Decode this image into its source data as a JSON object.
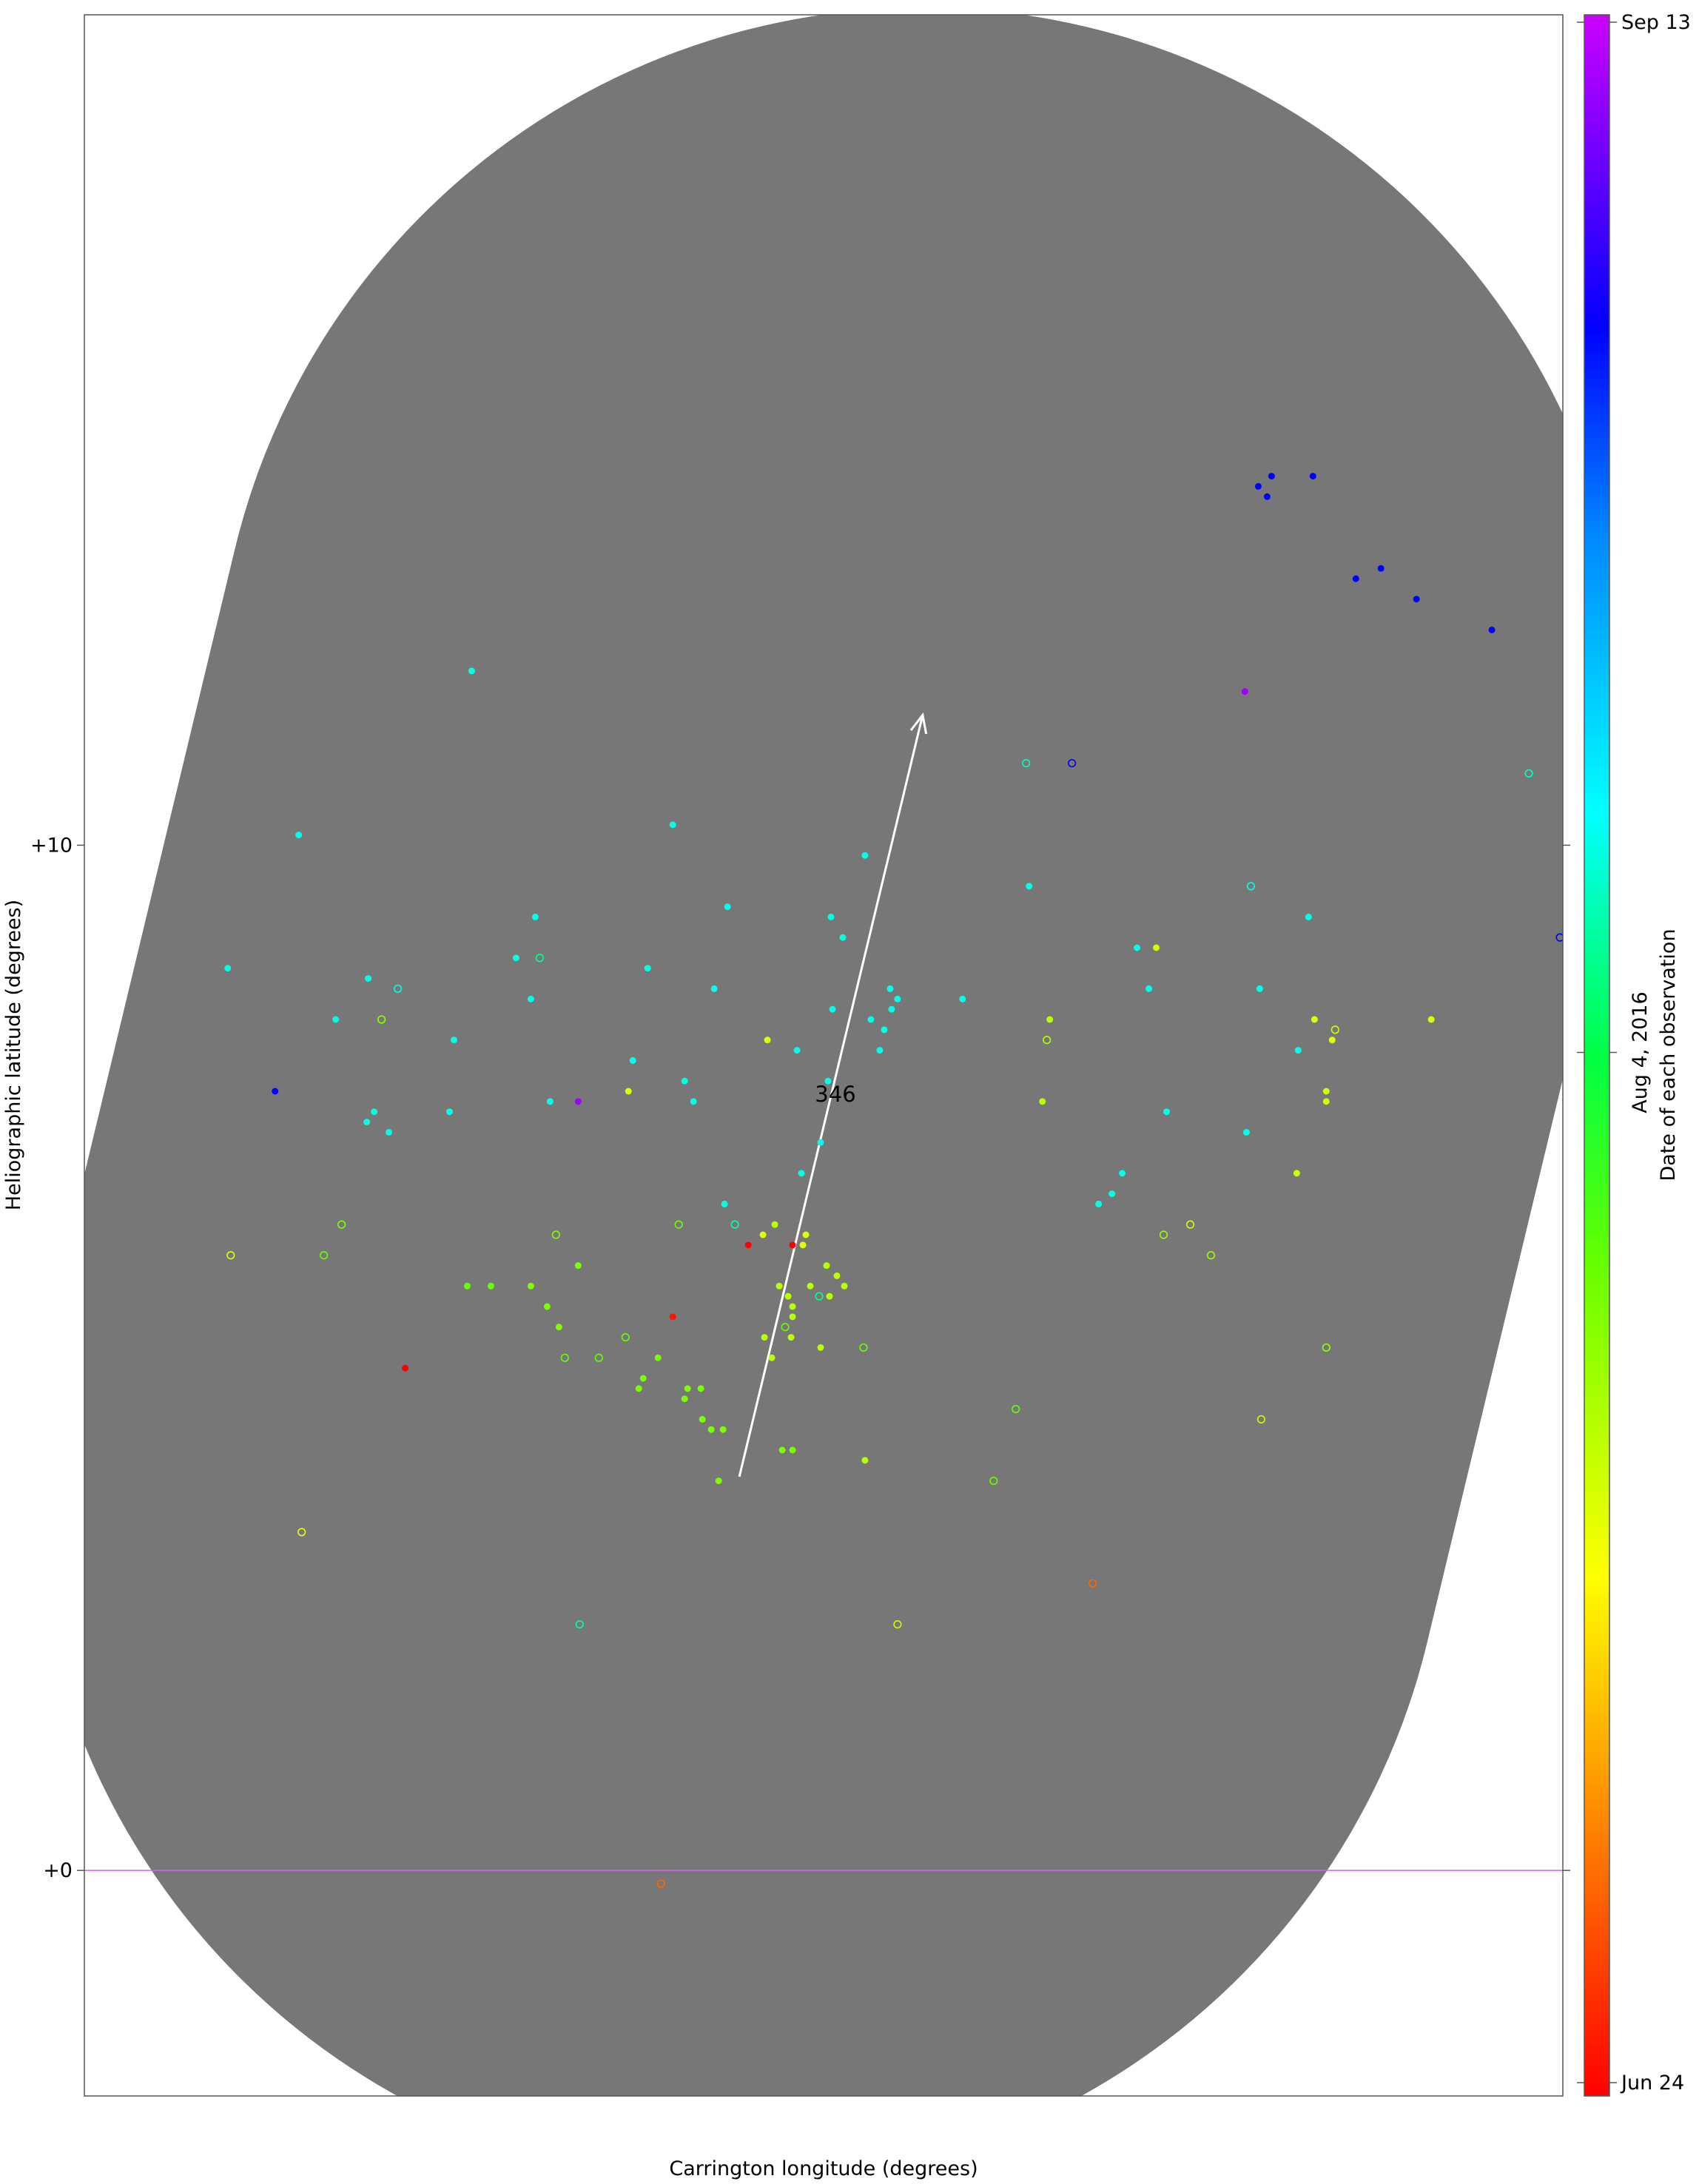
{
  "chart_data": {
    "type": "scatter",
    "xlabel": "Carrington longitude (degrees)",
    "ylabel": "Heliographic latitude (degrees)",
    "y_ticks": [
      {
        "value": 0,
        "label": "+0"
      },
      {
        "value": 10,
        "label": "+10"
      }
    ],
    "xlim": [
      0,
      100
    ],
    "ylim": [
      -2.2,
      18.1
    ],
    "grid": false,
    "colorbar": {
      "title": "Date of each observation",
      "ticks": [
        {
          "t": 0.0,
          "label": "Jun 24"
        },
        {
          "t": 0.5,
          "label": "Aug 4, 2016"
        },
        {
          "t": 1.0,
          "label": "Sep 13"
        }
      ]
    },
    "regions": [
      {
        "label": "346",
        "start": [
          44.3,
          3.84
        ],
        "end": [
          56.7,
          11.27
        ],
        "halfwidth_lat": 6.9,
        "color": "#777777"
      }
    ],
    "equator_line": {
      "value": 0,
      "color": "#cc66ee"
    },
    "points": [
      {
        "x": 9.7,
        "y": 8.8,
        "t": 0.6,
        "filled": true
      },
      {
        "x": 14.5,
        "y": 10.1,
        "t": 0.6,
        "filled": true
      },
      {
        "x": 26.2,
        "y": 11.7,
        "t": 0.6,
        "filled": true
      },
      {
        "x": 17.0,
        "y": 8.3,
        "t": 0.6,
        "filled": true
      },
      {
        "x": 19.2,
        "y": 8.7,
        "t": 0.6,
        "filled": true
      },
      {
        "x": 21.2,
        "y": 8.6,
        "t": 0.6,
        "open": true,
        "filled": false
      },
      {
        "x": 25.0,
        "y": 8.1,
        "t": 0.6,
        "filled": true
      },
      {
        "x": 30.2,
        "y": 8.5,
        "t": 0.6,
        "filled": true
      },
      {
        "x": 29.2,
        "y": 8.9,
        "t": 0.6,
        "filled": true
      },
      {
        "x": 30.5,
        "y": 9.3,
        "t": 0.6,
        "filled": true
      },
      {
        "x": 19.6,
        "y": 7.4,
        "t": 0.6,
        "filled": true
      },
      {
        "x": 20.6,
        "y": 7.2,
        "t": 0.6,
        "filled": true
      },
      {
        "x": 19.1,
        "y": 7.3,
        "t": 0.6,
        "filled": true
      },
      {
        "x": 24.7,
        "y": 7.4,
        "t": 0.6,
        "filled": true
      },
      {
        "x": 30.8,
        "y": 8.9,
        "t": 0.55,
        "open": true,
        "filled": false
      },
      {
        "x": 31.5,
        "y": 7.5,
        "t": 0.6,
        "filled": true
      },
      {
        "x": 39.8,
        "y": 10.2,
        "t": 0.6,
        "filled": true
      },
      {
        "x": 43.5,
        "y": 9.4,
        "t": 0.6,
        "filled": true
      },
      {
        "x": 38.1,
        "y": 8.8,
        "t": 0.6,
        "filled": true
      },
      {
        "x": 42.6,
        "y": 8.6,
        "t": 0.6,
        "filled": true
      },
      {
        "x": 37.1,
        "y": 7.9,
        "t": 0.6,
        "filled": true
      },
      {
        "x": 40.6,
        "y": 7.7,
        "t": 0.6,
        "filled": true
      },
      {
        "x": 41.2,
        "y": 7.5,
        "t": 0.6,
        "filled": true
      },
      {
        "x": 44.0,
        "y": 6.3,
        "t": 0.57,
        "open": true,
        "filled": false
      },
      {
        "x": 43.3,
        "y": 6.5,
        "t": 0.6,
        "filled": true
      },
      {
        "x": 48.2,
        "y": 8.0,
        "t": 0.6,
        "filled": true
      },
      {
        "x": 50.3,
        "y": 7.7,
        "t": 0.6,
        "filled": true
      },
      {
        "x": 49.8,
        "y": 7.1,
        "t": 0.6,
        "filled": true
      },
      {
        "x": 48.5,
        "y": 6.8,
        "t": 0.6,
        "filled": true
      },
      {
        "x": 50.5,
        "y": 9.3,
        "t": 0.6,
        "filled": true
      },
      {
        "x": 51.3,
        "y": 9.1,
        "t": 0.6,
        "filled": true
      },
      {
        "x": 50.6,
        "y": 8.4,
        "t": 0.6,
        "filled": true
      },
      {
        "x": 52.8,
        "y": 9.9,
        "t": 0.6,
        "filled": true
      },
      {
        "x": 53.2,
        "y": 8.3,
        "t": 0.6,
        "filled": true
      },
      {
        "x": 54.6,
        "y": 8.4,
        "t": 0.6,
        "filled": true
      },
      {
        "x": 54.5,
        "y": 8.6,
        "t": 0.6,
        "filled": true
      },
      {
        "x": 55.0,
        "y": 8.5,
        "t": 0.6,
        "filled": true
      },
      {
        "x": 54.1,
        "y": 8.2,
        "t": 0.6,
        "filled": true
      },
      {
        "x": 53.8,
        "y": 8.0,
        "t": 0.6,
        "filled": true
      },
      {
        "x": 59.4,
        "y": 8.5,
        "t": 0.6,
        "filled": true
      },
      {
        "x": 63.7,
        "y": 10.8,
        "t": 0.57,
        "open": true,
        "filled": false
      },
      {
        "x": 63.9,
        "y": 9.6,
        "t": 0.6,
        "filled": true
      },
      {
        "x": 71.2,
        "y": 9.0,
        "t": 0.6,
        "filled": true
      },
      {
        "x": 72.0,
        "y": 8.6,
        "t": 0.6,
        "filled": true
      },
      {
        "x": 73.2,
        "y": 7.4,
        "t": 0.6,
        "filled": true
      },
      {
        "x": 69.5,
        "y": 6.6,
        "t": 0.6,
        "filled": true
      },
      {
        "x": 68.6,
        "y": 6.5,
        "t": 0.6,
        "filled": true
      },
      {
        "x": 70.2,
        "y": 6.8,
        "t": 0.6,
        "filled": true
      },
      {
        "x": 78.9,
        "y": 9.6,
        "t": 0.6,
        "open": true,
        "filled": false
      },
      {
        "x": 82.8,
        "y": 9.3,
        "t": 0.6,
        "filled": true
      },
      {
        "x": 79.5,
        "y": 8.6,
        "t": 0.6,
        "filled": true
      },
      {
        "x": 82.1,
        "y": 8.0,
        "t": 0.6,
        "filled": true
      },
      {
        "x": 78.6,
        "y": 7.2,
        "t": 0.6,
        "filled": true
      },
      {
        "x": 97.7,
        "y": 10.7,
        "t": 0.58,
        "open": true,
        "filled": false
      },
      {
        "x": 66.8,
        "y": 10.8,
        "t": 0.85,
        "open": true,
        "filled": false
      },
      {
        "x": 99.8,
        "y": 9.1,
        "t": 0.85,
        "open": true,
        "filled": false
      },
      {
        "x": 12.9,
        "y": 7.6,
        "t": 0.85,
        "filled": true
      },
      {
        "x": 33.4,
        "y": 7.5,
        "t": 0.95,
        "filled": true
      },
      {
        "x": 78.5,
        "y": 11.5,
        "t": 0.95,
        "filled": true
      },
      {
        "x": 79.4,
        "y": 13.5,
        "t": 0.85,
        "filled": true
      },
      {
        "x": 80.3,
        "y": 13.6,
        "t": 0.85,
        "filled": true
      },
      {
        "x": 80.0,
        "y": 13.4,
        "t": 0.85,
        "filled": true
      },
      {
        "x": 83.1,
        "y": 13.6,
        "t": 0.85,
        "filled": true
      },
      {
        "x": 86.0,
        "y": 12.6,
        "t": 0.85,
        "filled": true
      },
      {
        "x": 87.7,
        "y": 12.7,
        "t": 0.85,
        "filled": true
      },
      {
        "x": 90.1,
        "y": 12.4,
        "t": 0.85,
        "filled": true
      },
      {
        "x": 95.2,
        "y": 12.1,
        "t": 0.85,
        "filled": true
      },
      {
        "x": 9.9,
        "y": 6.0,
        "t": 0.28,
        "open": true,
        "filled": false
      },
      {
        "x": 14.7,
        "y": 3.3,
        "t": 0.27,
        "open": true,
        "filled": false
      },
      {
        "x": 17.4,
        "y": 6.3,
        "t": 0.38,
        "open": true,
        "filled": false
      },
      {
        "x": 20.1,
        "y": 8.3,
        "t": 0.36,
        "open": true,
        "filled": false
      },
      {
        "x": 16.2,
        "y": 6.0,
        "t": 0.4,
        "open": true,
        "filled": false
      },
      {
        "x": 21.7,
        "y": 4.9,
        "t": 0.0,
        "filled": true
      },
      {
        "x": 25.9,
        "y": 5.7,
        "t": 0.4,
        "filled": true
      },
      {
        "x": 27.5,
        "y": 5.7,
        "t": 0.4,
        "filled": true
      },
      {
        "x": 30.2,
        "y": 5.7,
        "t": 0.38,
        "filled": true
      },
      {
        "x": 31.3,
        "y": 5.5,
        "t": 0.38,
        "filled": true
      },
      {
        "x": 32.1,
        "y": 5.3,
        "t": 0.38,
        "filled": true
      },
      {
        "x": 32.5,
        "y": 5.0,
        "t": 0.4,
        "open": true,
        "filled": false
      },
      {
        "x": 33.4,
        "y": 5.9,
        "t": 0.38,
        "filled": true
      },
      {
        "x": 34.8,
        "y": 5.0,
        "t": 0.4,
        "open": true,
        "filled": false
      },
      {
        "x": 31.9,
        "y": 6.2,
        "t": 0.38,
        "open": true,
        "filled": false
      },
      {
        "x": 36.8,
        "y": 7.6,
        "t": 0.28,
        "filled": true
      },
      {
        "x": 36.6,
        "y": 5.2,
        "t": 0.4,
        "open": true,
        "filled": false
      },
      {
        "x": 37.5,
        "y": 4.7,
        "t": 0.38,
        "filled": true
      },
      {
        "x": 37.8,
        "y": 4.8,
        "t": 0.38,
        "filled": true
      },
      {
        "x": 38.8,
        "y": 5.0,
        "t": 0.38,
        "filled": true
      },
      {
        "x": 40.6,
        "y": 4.6,
        "t": 0.38,
        "filled": true
      },
      {
        "x": 40.8,
        "y": 4.7,
        "t": 0.38,
        "filled": true
      },
      {
        "x": 41.8,
        "y": 4.4,
        "t": 0.38,
        "filled": true
      },
      {
        "x": 41.7,
        "y": 4.7,
        "t": 0.38,
        "filled": true
      },
      {
        "x": 42.4,
        "y": 4.3,
        "t": 0.38,
        "filled": true
      },
      {
        "x": 43.2,
        "y": 4.3,
        "t": 0.38,
        "filled": true
      },
      {
        "x": 42.9,
        "y": 3.8,
        "t": 0.38,
        "filled": true
      },
      {
        "x": 40.2,
        "y": 6.3,
        "t": 0.4,
        "open": true,
        "filled": false
      },
      {
        "x": 39.8,
        "y": 5.4,
        "t": 0.02,
        "filled": true
      },
      {
        "x": 44.9,
        "y": 6.1,
        "t": 0.0,
        "filled": true
      },
      {
        "x": 45.9,
        "y": 6.2,
        "t": 0.28,
        "filled": true
      },
      {
        "x": 47.9,
        "y": 6.1,
        "t": 0.0,
        "filled": true
      },
      {
        "x": 48.6,
        "y": 6.1,
        "t": 0.28,
        "filled": true
      },
      {
        "x": 48.8,
        "y": 6.2,
        "t": 0.28,
        "filled": true
      },
      {
        "x": 46.2,
        "y": 8.1,
        "t": 0.28,
        "filled": true
      },
      {
        "x": 46.7,
        "y": 6.3,
        "t": 0.32,
        "filled": true
      },
      {
        "x": 47.0,
        "y": 5.7,
        "t": 0.32,
        "filled": true
      },
      {
        "x": 47.6,
        "y": 5.6,
        "t": 0.32,
        "filled": true
      },
      {
        "x": 47.9,
        "y": 5.5,
        "t": 0.32,
        "filled": true
      },
      {
        "x": 47.9,
        "y": 5.4,
        "t": 0.32,
        "filled": true
      },
      {
        "x": 47.4,
        "y": 5.3,
        "t": 0.4,
        "open": true,
        "filled": false
      },
      {
        "x": 49.1,
        "y": 5.7,
        "t": 0.32,
        "filled": true
      },
      {
        "x": 49.7,
        "y": 5.6,
        "t": 0.55,
        "open": true,
        "filled": false
      },
      {
        "x": 50.2,
        "y": 5.9,
        "t": 0.32,
        "filled": true
      },
      {
        "x": 50.4,
        "y": 5.6,
        "t": 0.32,
        "filled": true
      },
      {
        "x": 50.9,
        "y": 5.8,
        "t": 0.32,
        "filled": true
      },
      {
        "x": 51.4,
        "y": 5.7,
        "t": 0.32,
        "filled": true
      },
      {
        "x": 46.0,
        "y": 5.2,
        "t": 0.32,
        "filled": true
      },
      {
        "x": 46.5,
        "y": 5.0,
        "t": 0.32,
        "filled": true
      },
      {
        "x": 49.8,
        "y": 5.1,
        "t": 0.32,
        "filled": true
      },
      {
        "x": 47.8,
        "y": 5.2,
        "t": 0.32,
        "filled": true
      },
      {
        "x": 52.7,
        "y": 5.1,
        "t": 0.4,
        "open": true,
        "filled": false
      },
      {
        "x": 47.2,
        "y": 4.1,
        "t": 0.38,
        "filled": true
      },
      {
        "x": 47.9,
        "y": 4.1,
        "t": 0.38,
        "filled": true
      },
      {
        "x": 52.8,
        "y": 4.0,
        "t": 0.32,
        "filled": true
      },
      {
        "x": 64.8,
        "y": 7.5,
        "t": 0.32,
        "filled": true
      },
      {
        "x": 65.3,
        "y": 8.3,
        "t": 0.32,
        "filled": true
      },
      {
        "x": 65.1,
        "y": 8.1,
        "t": 0.32,
        "open": true,
        "filled": false
      },
      {
        "x": 61.5,
        "y": 3.8,
        "t": 0.4,
        "open": true,
        "filled": false
      },
      {
        "x": 63.0,
        "y": 4.5,
        "t": 0.4,
        "open": true,
        "filled": false
      },
      {
        "x": 68.2,
        "y": 2.8,
        "t": 0.1,
        "open": true,
        "filled": false
      },
      {
        "x": 55.0,
        "y": 2.4,
        "t": 0.3,
        "open": true,
        "filled": false
      },
      {
        "x": 33.5,
        "y": 2.4,
        "t": 0.55,
        "open": true,
        "filled": false
      },
      {
        "x": 72.5,
        "y": 9.0,
        "t": 0.3,
        "filled": true
      },
      {
        "x": 73.0,
        "y": 6.2,
        "t": 0.35,
        "open": true,
        "filled": false
      },
      {
        "x": 74.8,
        "y": 6.3,
        "t": 0.3,
        "open": true,
        "filled": false
      },
      {
        "x": 76.2,
        "y": 6.0,
        "t": 0.35,
        "open": true,
        "filled": false
      },
      {
        "x": 79.6,
        "y": 4.4,
        "t": 0.3,
        "open": true,
        "filled": false
      },
      {
        "x": 82.0,
        "y": 6.8,
        "t": 0.3,
        "filled": true
      },
      {
        "x": 83.2,
        "y": 8.3,
        "t": 0.28,
        "filled": true
      },
      {
        "x": 84.4,
        "y": 8.1,
        "t": 0.28,
        "filled": true
      },
      {
        "x": 84.6,
        "y": 8.2,
        "t": 0.3,
        "open": true,
        "filled": false
      },
      {
        "x": 84.0,
        "y": 7.6,
        "t": 0.3,
        "filled": true
      },
      {
        "x": 84.0,
        "y": 7.5,
        "t": 0.3,
        "filled": true
      },
      {
        "x": 84.0,
        "y": 5.1,
        "t": 0.35,
        "open": true,
        "filled": false
      },
      {
        "x": 91.1,
        "y": 8.3,
        "t": 0.28,
        "filled": true
      },
      {
        "x": 39.0,
        "y": -0.13,
        "t": 0.1,
        "open": true,
        "filled": false
      }
    ]
  }
}
